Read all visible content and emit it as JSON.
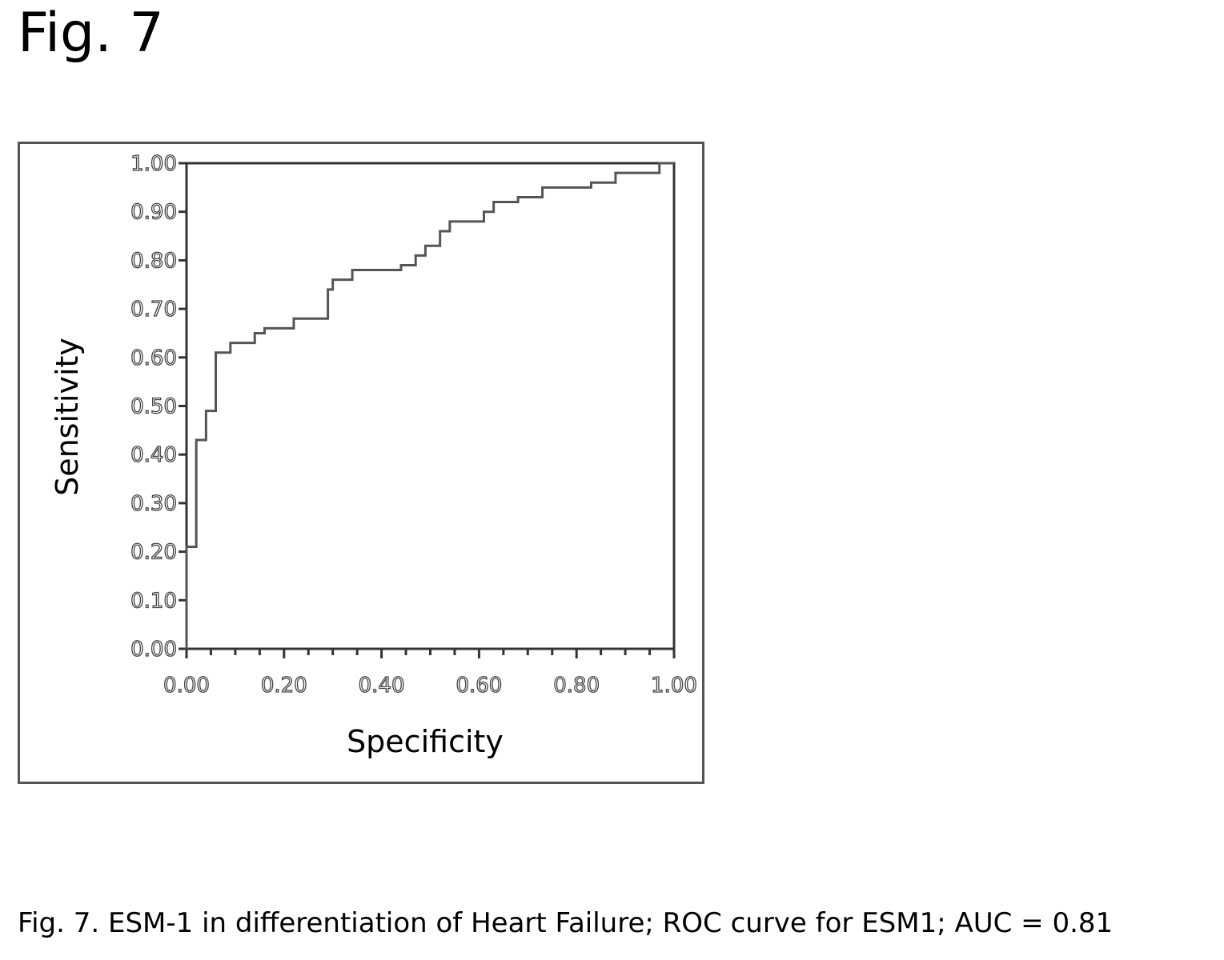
{
  "figure_label": "Fig. 7",
  "caption": "Fig. 7. ESM-1 in differentiation of Heart Failure; ROC curve for ESM1; AUC = 0.81",
  "chart_data": {
    "type": "line",
    "xlabel": "Specificity",
    "ylabel": "Sensitivity",
    "xlim": [
      0,
      1
    ],
    "ylim": [
      0,
      1
    ],
    "x_ticks": [
      "0.00",
      "0.20",
      "0.40",
      "0.60",
      "0.80",
      "1.00"
    ],
    "y_ticks": [
      "0.00",
      "0.10",
      "0.20",
      "0.30",
      "0.40",
      "0.50",
      "0.60",
      "0.70",
      "0.80",
      "0.90",
      "1.00"
    ],
    "grid": false,
    "series": [
      {
        "color": "#555555",
        "points": [
          [
            0.0,
            0.0
          ],
          [
            0.0,
            0.21
          ],
          [
            0.02,
            0.21
          ],
          [
            0.02,
            0.43
          ],
          [
            0.04,
            0.43
          ],
          [
            0.04,
            0.49
          ],
          [
            0.06,
            0.49
          ],
          [
            0.06,
            0.61
          ],
          [
            0.09,
            0.61
          ],
          [
            0.09,
            0.63
          ],
          [
            0.14,
            0.63
          ],
          [
            0.14,
            0.65
          ],
          [
            0.16,
            0.65
          ],
          [
            0.16,
            0.66
          ],
          [
            0.22,
            0.66
          ],
          [
            0.22,
            0.68
          ],
          [
            0.29,
            0.68
          ],
          [
            0.29,
            0.74
          ],
          [
            0.3,
            0.74
          ],
          [
            0.3,
            0.76
          ],
          [
            0.34,
            0.76
          ],
          [
            0.34,
            0.78
          ],
          [
            0.44,
            0.78
          ],
          [
            0.44,
            0.79
          ],
          [
            0.47,
            0.79
          ],
          [
            0.47,
            0.81
          ],
          [
            0.49,
            0.81
          ],
          [
            0.49,
            0.83
          ],
          [
            0.52,
            0.83
          ],
          [
            0.52,
            0.86
          ],
          [
            0.54,
            0.86
          ],
          [
            0.54,
            0.88
          ],
          [
            0.61,
            0.88
          ],
          [
            0.61,
            0.9
          ],
          [
            0.63,
            0.9
          ],
          [
            0.63,
            0.92
          ],
          [
            0.68,
            0.92
          ],
          [
            0.68,
            0.93
          ],
          [
            0.73,
            0.93
          ],
          [
            0.73,
            0.95
          ],
          [
            0.83,
            0.95
          ],
          [
            0.83,
            0.96
          ],
          [
            0.88,
            0.96
          ],
          [
            0.88,
            0.98
          ],
          [
            0.97,
            0.98
          ],
          [
            0.97,
            1.0
          ],
          [
            1.0,
            1.0
          ]
        ]
      }
    ]
  }
}
